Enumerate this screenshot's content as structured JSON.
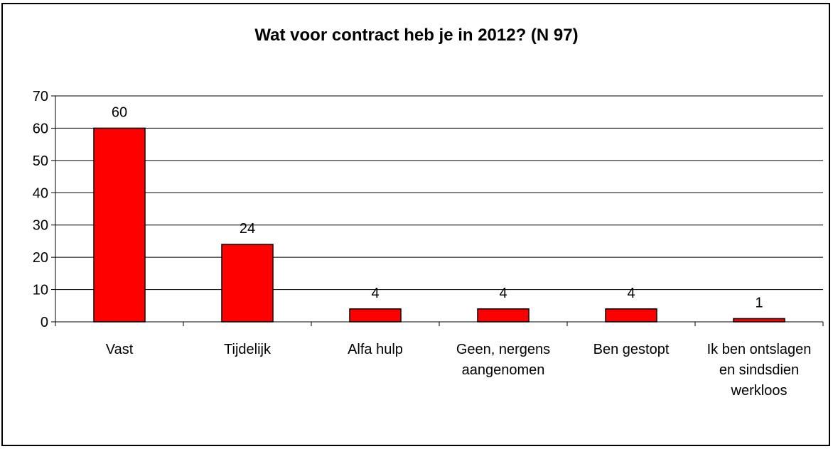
{
  "chart_data": {
    "type": "bar",
    "title": "Wat voor contract heb je in 2012? (N 97)",
    "categories": [
      "Vast",
      "Tijdelijk",
      "Alfa hulp",
      "Geen, nergens aangenomen",
      "Ben gestopt",
      "Ik ben ontslagen en sindsdien werkloos"
    ],
    "values": [
      60,
      24,
      4,
      4,
      4,
      1
    ],
    "data_labels": [
      "60",
      "24",
      "4",
      "4",
      "4",
      "1"
    ],
    "y_ticks": [
      "0",
      "10",
      "20",
      "30",
      "40",
      "50",
      "60",
      "70"
    ],
    "ylim": [
      0,
      70
    ],
    "xlabel": "",
    "ylabel": "",
    "grid": true,
    "legend": "none",
    "bar_color": "#ff0000"
  }
}
